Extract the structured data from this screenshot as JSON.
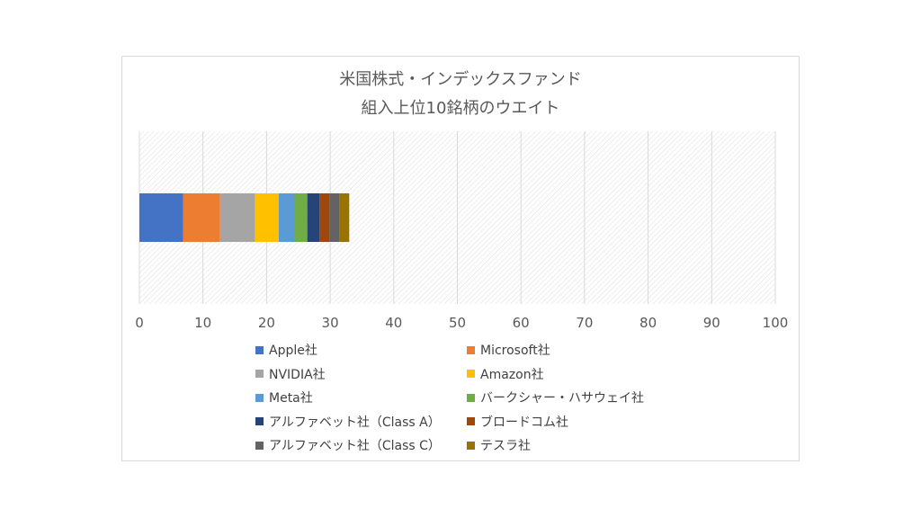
{
  "chart_data": {
    "type": "bar",
    "orientation": "horizontal",
    "stacked": true,
    "title": [
      "米国株式・インデックスファンド",
      "組入上位10銘柄のウエイト"
    ],
    "xlim": [
      0,
      100
    ],
    "xticks": [
      0,
      10,
      20,
      30,
      40,
      50,
      60,
      70,
      80,
      90,
      100
    ],
    "grid": true,
    "legend_position": "bottom",
    "categories": [
      ""
    ],
    "series": [
      {
        "name": "Apple社",
        "values": [
          6.9
        ],
        "color": "#4472c4"
      },
      {
        "name": "Microsoft社",
        "values": [
          5.8
        ],
        "color": "#ed7d31"
      },
      {
        "name": "NVIDIA社",
        "values": [
          5.5
        ],
        "color": "#a5a5a5"
      },
      {
        "name": "Amazon社",
        "values": [
          3.7
        ],
        "color": "#ffc000"
      },
      {
        "name": "Meta社",
        "values": [
          2.5
        ],
        "color": "#5b9bd5"
      },
      {
        "name": "バークシャー・ハサウェイ社",
        "values": [
          2.0
        ],
        "color": "#70ad47"
      },
      {
        "name": "アルファベット社（Class A）",
        "values": [
          1.9
        ],
        "color": "#264478"
      },
      {
        "name": "ブロードコム社",
        "values": [
          1.6
        ],
        "color": "#9e480e"
      },
      {
        "name": "アルファベット社（Class C）",
        "values": [
          1.6
        ],
        "color": "#636363"
      },
      {
        "name": "テスラ社",
        "values": [
          1.5
        ],
        "color": "#997300"
      }
    ]
  }
}
